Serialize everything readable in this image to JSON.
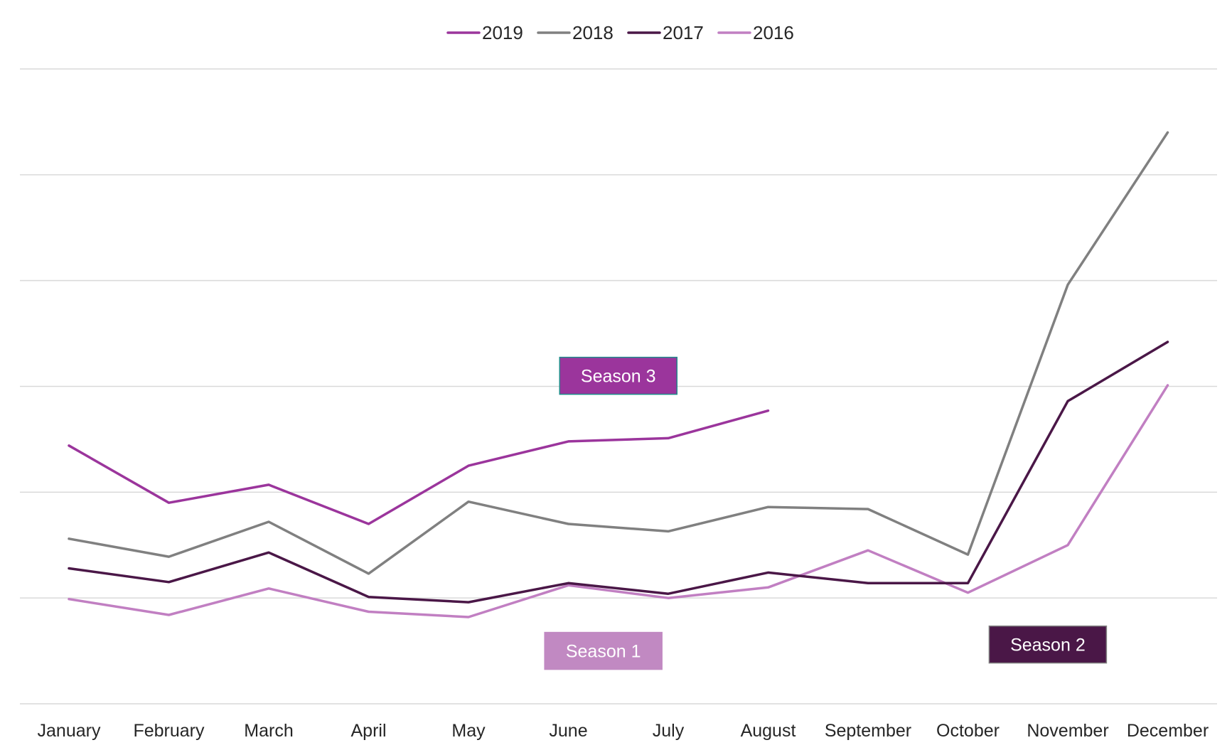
{
  "chart_data": {
    "type": "line",
    "title": "",
    "xlabel": "",
    "ylabel": "",
    "categories": [
      "January",
      "February",
      "March",
      "April",
      "May",
      "June",
      "July",
      "August",
      "September",
      "October",
      "November",
      "December"
    ],
    "ylim": [
      0,
      6
    ],
    "grid": true,
    "legend_position": "top-center",
    "series": [
      {
        "name": "2019",
        "color": "#9B359C",
        "values": [
          2.44,
          1.9,
          2.07,
          1.7,
          2.25,
          2.48,
          2.51,
          2.77,
          null,
          null,
          null,
          null
        ]
      },
      {
        "name": "2018",
        "color": "#808080",
        "values": [
          1.56,
          1.39,
          1.72,
          1.23,
          1.91,
          1.7,
          1.63,
          1.86,
          1.84,
          1.41,
          3.96,
          5.4
        ]
      },
      {
        "name": "2017",
        "color": "#4A1747",
        "values": [
          1.28,
          1.15,
          1.43,
          1.01,
          0.96,
          1.14,
          1.04,
          1.24,
          1.14,
          1.14,
          2.86,
          3.42
        ]
      },
      {
        "name": "2016",
        "color": "#C17FC2",
        "values": [
          0.99,
          0.84,
          1.09,
          0.87,
          0.82,
          1.12,
          1.0,
          1.1,
          1.45,
          1.05,
          1.5,
          3.01
        ]
      }
    ],
    "annotations": [
      {
        "text": "Season 3",
        "x_index": 5.5,
        "y": 3.1,
        "fill": "#9B359C",
        "border": "#1F8A8A"
      },
      {
        "text": "Season 1",
        "x_index": 5.35,
        "y": 0.5,
        "fill": "#C189C2",
        "border": "#C189C2"
      },
      {
        "text": "Season 2",
        "x_index": 9.8,
        "y": 0.56,
        "fill": "#4A1747",
        "border": "#808080"
      }
    ]
  }
}
